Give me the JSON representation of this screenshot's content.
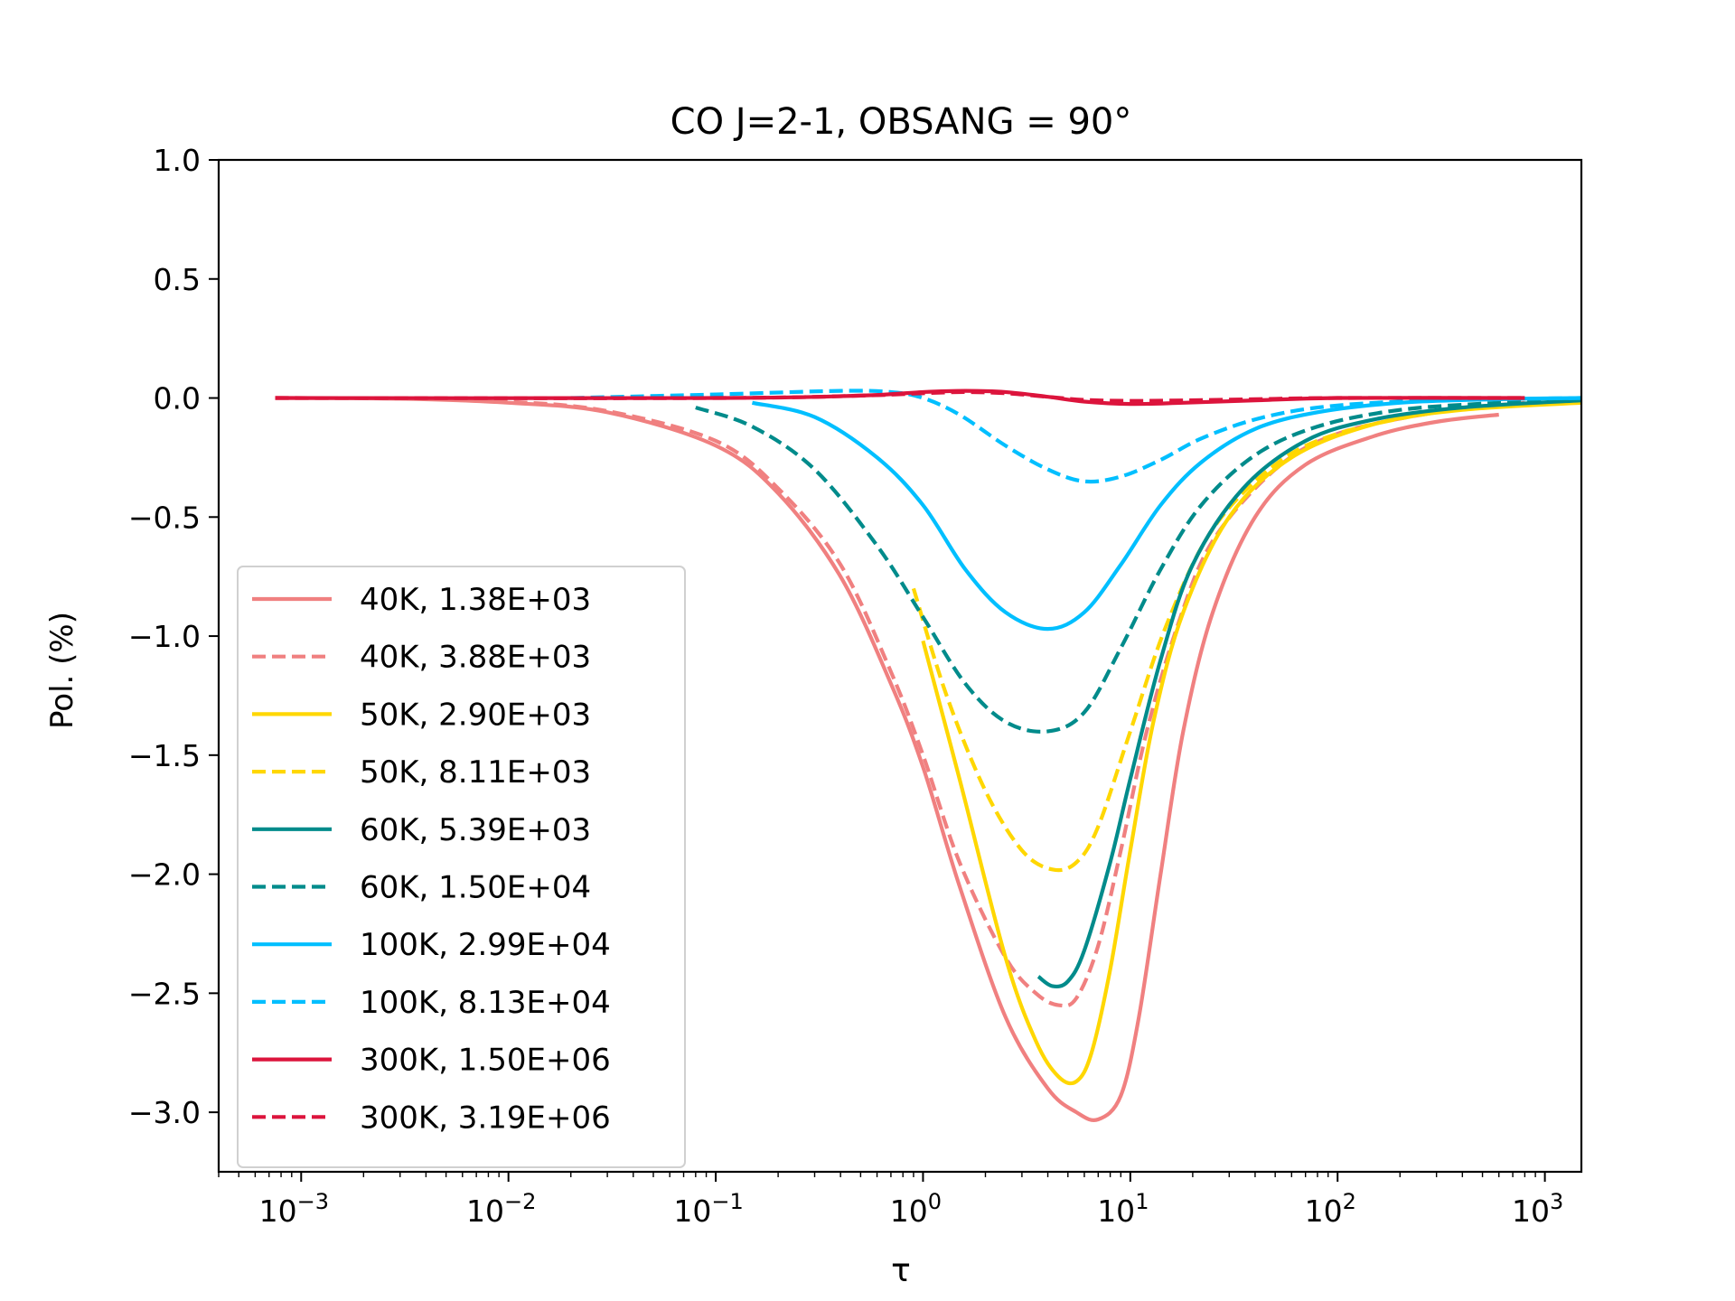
{
  "chart_data": {
    "type": "line",
    "title": "CO J=2-1, OBSANG = 90°",
    "xlabel": "τ",
    "ylabel": "Pol. (%)",
    "xscale": "log",
    "xlim": [
      0.0004,
      1500
    ],
    "ylim": [
      -3.25,
      1.0
    ],
    "yticks": [
      1.0,
      0.5,
      0.0,
      -0.5,
      -1.0,
      -1.5,
      -2.0,
      -2.5,
      -3.0
    ],
    "ytick_labels": [
      "1.0",
      "0.5",
      "0.0",
      "−0.5",
      "−1.0",
      "−1.5",
      "−2.0",
      "−2.5",
      "−3.0"
    ],
    "xticks": [
      0.001,
      0.01,
      0.1,
      1,
      10,
      100,
      1000
    ],
    "xtick_exponents": [
      "−3",
      "−2",
      "−1",
      "0",
      "1",
      "2",
      "3"
    ],
    "xtick_base": "10",
    "legend_position": "lower-left",
    "series": [
      {
        "name": "40K, 1.38E+03",
        "color": "#F08080",
        "dash": false,
        "points": [
          [
            0.00075,
            0
          ],
          [
            0.003,
            -0.003
          ],
          [
            0.01,
            -0.02
          ],
          [
            0.03,
            -0.06
          ],
          [
            0.1,
            -0.2
          ],
          [
            0.2,
            -0.4
          ],
          [
            0.4,
            -0.75
          ],
          [
            0.7,
            -1.2
          ],
          [
            1.0,
            -1.55
          ],
          [
            1.5,
            -2.05
          ],
          [
            2.5,
            -2.6
          ],
          [
            4.0,
            -2.9
          ],
          [
            5.5,
            -3.0
          ],
          [
            7.0,
            -3.03
          ],
          [
            9.0,
            -2.93
          ],
          [
            11,
            -2.6
          ],
          [
            14,
            -2.0
          ],
          [
            18,
            -1.4
          ],
          [
            25,
            -0.9
          ],
          [
            40,
            -0.5
          ],
          [
            70,
            -0.28
          ],
          [
            150,
            -0.16
          ],
          [
            300,
            -0.1
          ],
          [
            600,
            -0.07
          ]
        ]
      },
      {
        "name": "40K, 3.88E+03",
        "color": "#F08080",
        "dash": true,
        "points": [
          [
            0.00075,
            0
          ],
          [
            0.003,
            -0.002
          ],
          [
            0.01,
            -0.015
          ],
          [
            0.03,
            -0.055
          ],
          [
            0.1,
            -0.18
          ],
          [
            0.2,
            -0.38
          ],
          [
            0.4,
            -0.7
          ],
          [
            0.7,
            -1.15
          ],
          [
            1.0,
            -1.5
          ],
          [
            1.5,
            -1.95
          ],
          [
            2.5,
            -2.35
          ],
          [
            3.5,
            -2.5
          ],
          [
            4.5,
            -2.55
          ],
          [
            5.5,
            -2.52
          ],
          [
            7.0,
            -2.3
          ],
          [
            9.0,
            -1.9
          ],
          [
            12,
            -1.4
          ],
          [
            17,
            -0.95
          ],
          [
            25,
            -0.6
          ],
          [
            50,
            -0.3
          ],
          [
            100,
            -0.15
          ],
          [
            300,
            -0.06
          ],
          [
            800,
            -0.02
          ]
        ]
      },
      {
        "name": "50K, 2.90E+03",
        "color": "#FFD700",
        "dash": false,
        "points": [
          [
            1.0,
            -1.02
          ],
          [
            1.5,
            -1.6
          ],
          [
            2.5,
            -2.35
          ],
          [
            3.5,
            -2.7
          ],
          [
            4.5,
            -2.85
          ],
          [
            5.5,
            -2.87
          ],
          [
            6.5,
            -2.75
          ],
          [
            8.0,
            -2.4
          ],
          [
            10,
            -1.9
          ],
          [
            13,
            -1.35
          ],
          [
            18,
            -0.9
          ],
          [
            30,
            -0.5
          ],
          [
            60,
            -0.25
          ],
          [
            150,
            -0.11
          ],
          [
            400,
            -0.05
          ],
          [
            1500,
            -0.02
          ]
        ]
      },
      {
        "name": "50K, 8.11E+03",
        "color": "#FFD700",
        "dash": true,
        "points": [
          [
            0.9,
            -0.8
          ],
          [
            1.3,
            -1.25
          ],
          [
            2.0,
            -1.65
          ],
          [
            3.0,
            -1.9
          ],
          [
            4.2,
            -1.98
          ],
          [
            5.5,
            -1.95
          ],
          [
            7.0,
            -1.8
          ],
          [
            10,
            -1.4
          ],
          [
            15,
            -0.95
          ],
          [
            25,
            -0.55
          ],
          [
            50,
            -0.28
          ],
          [
            100,
            -0.15
          ],
          [
            300,
            -0.06
          ],
          [
            900,
            -0.02
          ]
        ]
      },
      {
        "name": "60K, 5.39E+03",
        "color": "#008B8B",
        "dash": false,
        "points": [
          [
            3.6,
            -2.43
          ],
          [
            4.2,
            -2.47
          ],
          [
            5.0,
            -2.45
          ],
          [
            6.0,
            -2.32
          ],
          [
            8.0,
            -1.95
          ],
          [
            10,
            -1.6
          ],
          [
            14,
            -1.1
          ],
          [
            20,
            -0.7
          ],
          [
            35,
            -0.38
          ],
          [
            70,
            -0.18
          ],
          [
            150,
            -0.09
          ],
          [
            400,
            -0.04
          ],
          [
            1500,
            -0.01
          ]
        ]
      },
      {
        "name": "60K, 1.50E+04",
        "color": "#008B8B",
        "dash": true,
        "points": [
          [
            0.08,
            -0.04
          ],
          [
            0.15,
            -0.12
          ],
          [
            0.3,
            -0.3
          ],
          [
            0.6,
            -0.62
          ],
          [
            1.0,
            -0.92
          ],
          [
            1.6,
            -1.2
          ],
          [
            2.5,
            -1.36
          ],
          [
            4.0,
            -1.4
          ],
          [
            6.0,
            -1.32
          ],
          [
            9.0,
            -1.05
          ],
          [
            14,
            -0.72
          ],
          [
            22,
            -0.45
          ],
          [
            40,
            -0.24
          ],
          [
            80,
            -0.12
          ],
          [
            200,
            -0.05
          ],
          [
            600,
            -0.02
          ],
          [
            1500,
            -0.005
          ]
        ]
      },
      {
        "name": "100K, 2.99E+04",
        "color": "#00BFFF",
        "dash": false,
        "points": [
          [
            0.15,
            -0.02
          ],
          [
            0.3,
            -0.08
          ],
          [
            0.6,
            -0.25
          ],
          [
            1.0,
            -0.45
          ],
          [
            1.6,
            -0.72
          ],
          [
            2.5,
            -0.9
          ],
          [
            4.0,
            -0.97
          ],
          [
            6.0,
            -0.9
          ],
          [
            9.0,
            -0.7
          ],
          [
            14,
            -0.45
          ],
          [
            22,
            -0.27
          ],
          [
            40,
            -0.13
          ],
          [
            80,
            -0.06
          ],
          [
            200,
            -0.02
          ],
          [
            600,
            -0.005
          ],
          [
            1500,
            0
          ]
        ]
      },
      {
        "name": "100K, 8.13E+04",
        "color": "#00BFFF",
        "dash": true,
        "points": [
          [
            0.02,
            0.0
          ],
          [
            0.1,
            0.015
          ],
          [
            0.4,
            0.03
          ],
          [
            0.7,
            0.025
          ],
          [
            1.0,
            0.0
          ],
          [
            1.5,
            -0.07
          ],
          [
            2.5,
            -0.2
          ],
          [
            4.0,
            -0.3
          ],
          [
            6.0,
            -0.35
          ],
          [
            9.0,
            -0.33
          ],
          [
            14,
            -0.26
          ],
          [
            22,
            -0.17
          ],
          [
            40,
            -0.09
          ],
          [
            80,
            -0.04
          ],
          [
            200,
            -0.015
          ],
          [
            600,
            -0.005
          ],
          [
            1500,
            0
          ]
        ]
      },
      {
        "name": "300K, 1.50E+06",
        "color": "#DC143C",
        "dash": false,
        "points": [
          [
            0.00075,
            0
          ],
          [
            0.1,
            0.0
          ],
          [
            0.5,
            0.01
          ],
          [
            1.0,
            0.025
          ],
          [
            1.6,
            0.03
          ],
          [
            2.5,
            0.025
          ],
          [
            4.0,
            0.005
          ],
          [
            6.0,
            -0.015
          ],
          [
            10,
            -0.025
          ],
          [
            18,
            -0.02
          ],
          [
            40,
            -0.01
          ],
          [
            100,
            0.0
          ],
          [
            800,
            0.0
          ]
        ]
      },
      {
        "name": "300K, 3.19E+06",
        "color": "#DC143C",
        "dash": true,
        "points": [
          [
            0.00075,
            0
          ],
          [
            0.1,
            0.0
          ],
          [
            0.5,
            0.01
          ],
          [
            1.0,
            0.02
          ],
          [
            1.6,
            0.025
          ],
          [
            2.5,
            0.02
          ],
          [
            4.0,
            0.005
          ],
          [
            6.0,
            -0.008
          ],
          [
            10,
            -0.012
          ],
          [
            18,
            -0.01
          ],
          [
            40,
            -0.005
          ],
          [
            100,
            0.0
          ],
          [
            800,
            0.0
          ]
        ]
      }
    ]
  }
}
